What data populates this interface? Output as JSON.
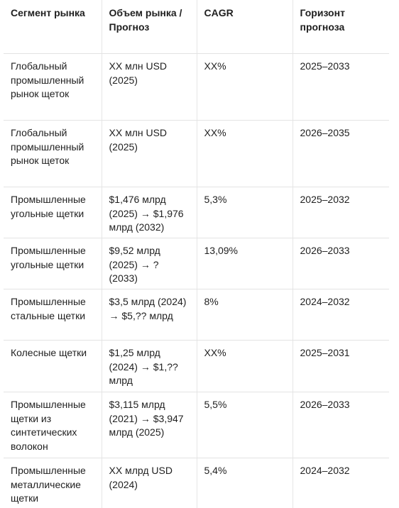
{
  "headers": [
    "Сегмент рынка",
    "Объем рынка / Прогноз",
    "CAGR",
    "Горизонт прогноза"
  ],
  "rows": [
    {
      "segment": "Глобальный промышленный рынок щеток",
      "volume": "XX млн USD (2025)",
      "cagr": "XX%",
      "horizon": "2025–2033"
    },
    {
      "segment": "Глобальный промышленный рынок щеток",
      "volume": "XX млн USD (2025)",
      "cagr": "XX%",
      "horizon": "2026–2035"
    },
    {
      "segment": "Промышленные угольные щетки",
      "volume": "$1,476 млрд (2025) → $1,976 млрд (2032)",
      "cagr": "5,3%",
      "horizon": "2025–2032"
    },
    {
      "segment": "Промышленные угольные щетки",
      "volume": "$9,52 млрд (2025) → ? (2033)",
      "cagr": "13,09%",
      "horizon": "2026–2033"
    },
    {
      "segment": "Промышленные стальные щетки",
      "volume": "$3,5 млрд (2024) → $5,?? млрд",
      "cagr": "8%",
      "horizon": "2024–2032"
    },
    {
      "segment": "Колесные щетки",
      "volume": "$1,25 млрд (2024) → $1,?? млрд",
      "cagr": "XX%",
      "horizon": "2025–2031"
    },
    {
      "segment": "Промышленные щетки из синтетических волокон",
      "volume": "$3,115 млрд (2021) → $3,947 млрд (2025)",
      "cagr": "5,5%",
      "horizon": "2026–2033"
    },
    {
      "segment": "Промышленные металлические щетки",
      "volume": "XX млрд USD (2024)",
      "cagr": "5,4%",
      "horizon": "2024–2032"
    }
  ]
}
